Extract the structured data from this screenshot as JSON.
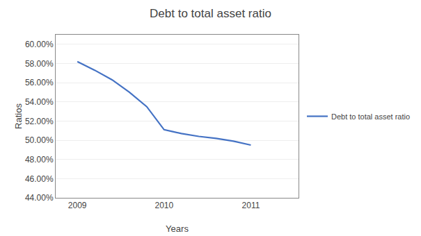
{
  "chart_data": {
    "type": "line",
    "title": "Debt to total asset ratio",
    "x_label": "Years",
    "y_label": "Ratios",
    "x": [
      2009,
      2009.2,
      2009.4,
      2009.6,
      2009.8,
      2010.0,
      2010.1,
      2010.2,
      2010.4,
      2010.6,
      2010.8,
      2011.0
    ],
    "series": [
      {
        "name": "Debt to total asset ratio",
        "color": "#4472C4",
        "values": [
          0.582,
          0.573,
          0.563,
          0.55,
          0.535,
          0.511,
          0.509,
          0.507,
          0.504,
          0.502,
          0.499,
          0.495
        ]
      }
    ],
    "xlim": [
      2008.75,
      2011.55
    ],
    "xticks": [
      2009,
      2010,
      2011
    ],
    "ylim": [
      0.44,
      0.61
    ],
    "yticks": [
      {
        "value": 0.44,
        "label": "44.00%"
      },
      {
        "value": 0.46,
        "label": "46.00%"
      },
      {
        "value": 0.48,
        "label": "48.00%"
      },
      {
        "value": 0.5,
        "label": "50.00%"
      },
      {
        "value": 0.52,
        "label": "52.00%"
      },
      {
        "value": 0.54,
        "label": "54.00%"
      },
      {
        "value": 0.56,
        "label": "56.00%"
      },
      {
        "value": 0.58,
        "label": "58.00%"
      },
      {
        "value": 0.6,
        "label": "60.00%"
      }
    ],
    "grid": "y",
    "legend": "right"
  }
}
